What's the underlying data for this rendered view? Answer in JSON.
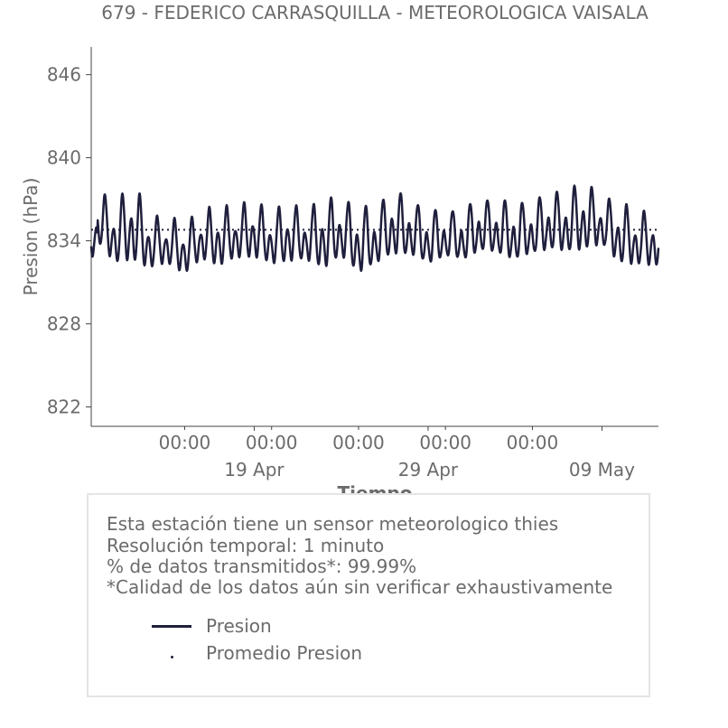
{
  "chart_data": {
    "type": "line",
    "title": "679 - FEDERICO CARRASQUILLA - METEOROLOGICA VAISALA",
    "xlabel": "Tiempo",
    "ylabel": "Presion (hPa)",
    "ylim": [
      820.6,
      848
    ],
    "yticks": [
      822,
      828,
      834,
      840,
      846
    ],
    "x_range": [
      "2024-04-09T15:00",
      "2024-05-12T06:00"
    ],
    "x_minor_ticks": [
      "00:00",
      "00:00",
      "00:00",
      "00:00",
      "00:00"
    ],
    "x_major_ticks": [
      "19 Apr",
      "29 Apr",
      "09 May"
    ],
    "grid": false,
    "series": [
      {
        "name": "Presion",
        "color": "#1f1f3d",
        "style": "solid",
        "note_values": "daily maximum / minimum pressure (hPa), day 0 = 10 Apr",
        "daily_max": [
          837.5,
          836.9,
          838.2,
          836.0,
          835.6,
          835.4,
          836.2,
          836.5,
          836.6,
          836.8,
          836.3,
          836.6,
          836.4,
          837.0,
          837.2,
          836.4,
          836.6,
          837.7,
          837.0,
          836.3,
          836.1,
          836.5,
          836.9,
          837.2,
          836.6,
          837.1,
          837.3,
          837.9,
          838.2,
          837.3,
          836.8,
          836.2
        ],
        "daily_min": [
          833.3,
          831.5,
          831.6,
          831.3,
          831.8,
          831.0,
          832.0,
          831.5,
          832.0,
          832.2,
          831.5,
          831.9,
          831.8,
          831.2,
          832.0,
          830.9,
          831.5,
          832.2,
          832.2,
          831.6,
          832.3,
          831.8,
          832.7,
          832.2,
          832.0,
          832.2,
          832.8,
          832.2,
          832.6,
          833.0,
          831.7,
          831.5
        ]
      },
      {
        "name": "Promedio Presion",
        "color": "#1f1f3d",
        "style": "dotted",
        "value": 834.8
      }
    ],
    "legend": [
      "Presion",
      "Promedio Presion"
    ]
  },
  "info": {
    "lines": [
      "Esta estación tiene un sensor meteorologico thies",
      "Resolución temporal: 1 minuto",
      "% de datos transmitidos*: 99.99%",
      "*Calidad de los datos aún sin verificar exhaustivamente"
    ]
  }
}
